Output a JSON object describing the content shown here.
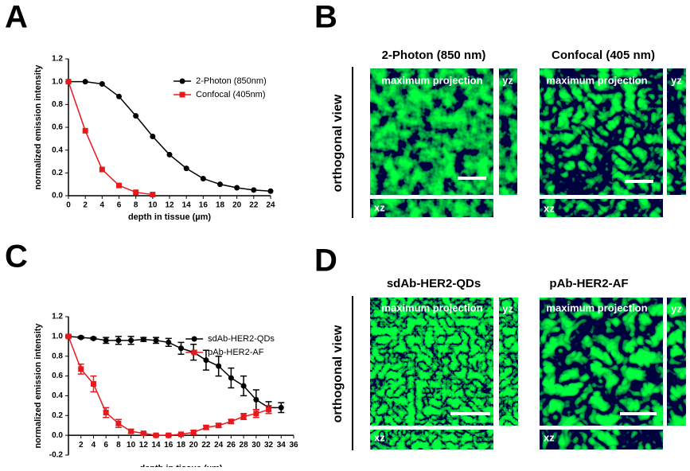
{
  "panel_labels": [
    "A",
    "B",
    "C",
    "D"
  ],
  "chart_data": [
    {
      "type": "line",
      "x_label": "depth in tissue (µm)",
      "y_label": "normalized emission intensity",
      "x": [
        0,
        2,
        4,
        6,
        8,
        10,
        12,
        14,
        16,
        18,
        20,
        22,
        24
      ],
      "series": [
        {
          "name": "2-Photon (850nm)",
          "color": "#000000",
          "marker": "circle",
          "values": [
            1.0,
            1.0,
            0.98,
            0.87,
            0.7,
            0.52,
            0.36,
            0.24,
            0.15,
            0.1,
            0.07,
            0.05,
            0.04
          ]
        },
        {
          "name": "Confocal (405nm)",
          "color": "#e8191c",
          "marker": "square",
          "values": [
            1.0,
            0.57,
            0.23,
            0.09,
            0.03,
            0.01,
            null,
            null,
            null,
            null,
            null,
            null,
            null
          ]
        }
      ],
      "xlim": [
        0,
        24
      ],
      "xticks": [
        0,
        2,
        4,
        6,
        8,
        10,
        12,
        14,
        16,
        18,
        20,
        22,
        24
      ],
      "ylim": [
        0,
        1.2
      ],
      "yticks": [
        {
          "value": 0,
          "label": "0.0"
        },
        0.2,
        0.4,
        0.6,
        0.8,
        {
          "value": 1,
          "label": "1.0"
        },
        1.2
      ],
      "legend": "upper right"
    },
    {
      "type": "line",
      "x_label": "depth in tissue (µm)",
      "y_label": "normalized emission intensity",
      "x": [
        0,
        2,
        4,
        6,
        8,
        10,
        12,
        14,
        16,
        18,
        20,
        22,
        24,
        26,
        28,
        30,
        32,
        34
      ],
      "series": [
        {
          "name": "sdAb-HER2-QDs",
          "color": "#000000",
          "marker": "circle",
          "values": [
            1.0,
            0.99,
            0.98,
            0.96,
            0.96,
            0.96,
            0.97,
            0.96,
            0.94,
            0.88,
            0.84,
            0.76,
            0.7,
            0.58,
            0.5,
            0.36,
            0.28,
            0.28
          ],
          "errors": [
            0.01,
            0.01,
            0.01,
            0.03,
            0.04,
            0.04,
            0.02,
            0.03,
            0.04,
            0.06,
            0.08,
            0.1,
            0.1,
            0.1,
            0.1,
            0.1,
            0.06,
            0.05
          ]
        },
        {
          "name": "pAb-HER2-AF",
          "color": "#e8191c",
          "marker": "square",
          "values": [
            1.0,
            0.67,
            0.52,
            0.23,
            0.12,
            0.04,
            0.02,
            0.0,
            0.0,
            0.01,
            0.03,
            0.08,
            0.1,
            0.14,
            0.19,
            0.22,
            0.26,
            null
          ],
          "errors": [
            0.0,
            0.05,
            0.08,
            0.05,
            0.04,
            0.02,
            0.01,
            0.01,
            0.01,
            0.01,
            0.02,
            0.02,
            0.02,
            0.02,
            0.03,
            0.04,
            0.04,
            null
          ]
        }
      ],
      "xlim": [
        0,
        36
      ],
      "xticks": [
        2,
        4,
        6,
        8,
        10,
        12,
        14,
        16,
        18,
        20,
        22,
        24,
        26,
        28,
        30,
        32,
        34,
        36
      ],
      "ylim": [
        -0.2,
        1.2
      ],
      "yticks": [
        -0.2,
        {
          "value": 0,
          "label": "0.0"
        },
        0.2,
        0.4,
        0.6,
        0.8,
        {
          "value": 1,
          "label": "1.0"
        },
        1.2
      ],
      "legend": "upper right"
    }
  ],
  "image_panels": [
    {
      "side_label": "orthogonal view",
      "columns": [
        {
          "title": "2-Photon (850 nm)",
          "overlay": "maximum projection",
          "yz_label": "yz",
          "xz_label": "xz"
        },
        {
          "title": "Confocal (405 nm)",
          "overlay": "maximum projection",
          "yz_label": "yz",
          "xz_label": "xz"
        }
      ]
    },
    {
      "side_label": "orthogonal view",
      "columns": [
        {
          "title": "sdAb-HER2-QDs",
          "overlay": "maximum projection",
          "yz_label": "yz",
          "xz_label": "xz"
        },
        {
          "title": "pAb-HER2-AF",
          "overlay": "maximum projection",
          "yz_label": "yz",
          "xz_label": "xz"
        }
      ]
    }
  ]
}
